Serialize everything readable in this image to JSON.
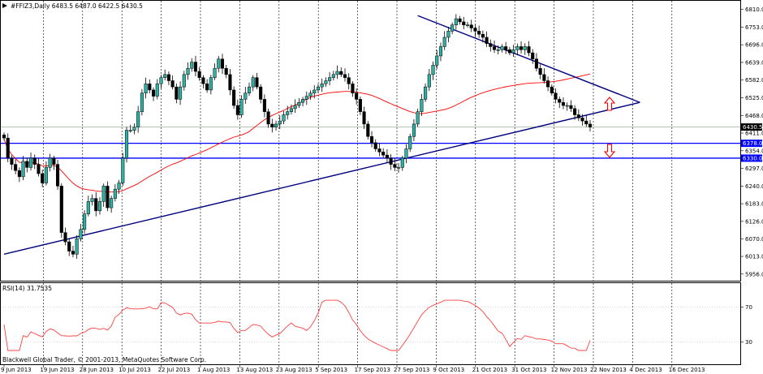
{
  "header": {
    "symbol_text": "#FFIZ3,Daily  6483.5 6487.0 6422.5 6430.5"
  },
  "rsi": {
    "label": "RSI(14) 31.7535",
    "levels": [
      70,
      30
    ],
    "level_labels": [
      "70",
      "30"
    ],
    "last_value": 31.7535
  },
  "footer": {
    "copyright": "Blackwell Global Trader, © 2001-2013, MetaQuotes Software Corp."
  },
  "colors": {
    "bull_candle": "#2fb0a4",
    "bear_candle": "#000000",
    "moving_average": "#ff0000",
    "trendline": "#000080",
    "level_line": "#0000ff",
    "rsi_line": "#ff4040",
    "arrow": "#ff0000",
    "price_tag_bg": "#000000"
  },
  "chart_data": {
    "type": "candlestick",
    "price_axis_ticks": [
      6810,
      6753,
      6696,
      6639,
      6582,
      6525,
      6468,
      6411,
      6354,
      6297,
      6240,
      6183,
      6126,
      6070,
      6013,
      5956
    ],
    "price_axis_labels": [
      "6810.0",
      "6753.0",
      "6696.0",
      "6639.0",
      "6582.0",
      "6525.0",
      "6468.0",
      "6411.0",
      "6354.0",
      "6297.0",
      "6240.0",
      "6183.0",
      "6126.0",
      "6070.0",
      "6013.0",
      "5956.0"
    ],
    "ylim": [
      5945,
      6830
    ],
    "date_labels": [
      "9 Jun 2013",
      "19 Jun 2013",
      "28 Jun 2013",
      "10 Jul 2013",
      "22 Jul 2013",
      "1 Aug 2013",
      "13 Aug 2013",
      "23 Aug 2013",
      "5 Sep 2013",
      "17 Sep 2013",
      "27 Sep 2013",
      "9 Oct 2013",
      "21 Oct 2013",
      "31 Oct 2013",
      "12 Nov 2013",
      "22 Nov 2013",
      "4 Dec 2013",
      "16 Dec 2013"
    ],
    "horizontal_levels": [
      {
        "price": 6378.0,
        "label": "6378.0"
      },
      {
        "price": 6330.0,
        "label": "6330.0"
      }
    ],
    "current_price": {
      "price": 6430.5,
      "label": "6430.5"
    },
    "support_trendline": [
      {
        "bar": 0,
        "price": 6020
      },
      {
        "bar": 166,
        "price": 6510
      }
    ],
    "resistance_trendline": [
      {
        "bar": 108,
        "price": 6790
      },
      {
        "bar": 166,
        "price": 6510
      }
    ],
    "closes": [
      6395,
      6330,
      6310,
      6290,
      6270,
      6320,
      6300,
      6330,
      6310,
      6280,
      6250,
      6300,
      6330,
      6310,
      6240,
      6090,
      6060,
      6030,
      6020,
      6070,
      6100,
      6150,
      6190,
      6200,
      6160,
      6190,
      6240,
      6170,
      6200,
      6230,
      6250,
      6330,
      6420,
      6420,
      6430,
      6480,
      6540,
      6570,
      6550,
      6530,
      6570,
      6590,
      6600,
      6580,
      6560,
      6520,
      6560,
      6600,
      6620,
      6640,
      6610,
      6590,
      6570,
      6550,
      6590,
      6620,
      6650,
      6620,
      6600,
      6550,
      6500,
      6470,
      6520,
      6540,
      6560,
      6590,
      6560,
      6520,
      6480,
      6440,
      6430,
      6440,
      6450,
      6470,
      6480,
      6490,
      6500,
      6510,
      6520,
      6530,
      6540,
      6550,
      6560,
      6570,
      6580,
      6590,
      6600,
      6610,
      6600,
      6590,
      6570,
      6540,
      6520,
      6480,
      6440,
      6400,
      6380,
      6360,
      6350,
      6340,
      6330,
      6310,
      6300,
      6300,
      6330,
      6360,
      6400,
      6440,
      6480,
      6520,
      6560,
      6600,
      6630,
      6660,
      6690,
      6720,
      6740,
      6760,
      6780,
      6770,
      6760,
      6760,
      6750,
      6740,
      6730,
      6720,
      6700,
      6690,
      6680,
      6680,
      6690,
      6680,
      6670,
      6680,
      6690,
      6680,
      6690,
      6670,
      6650,
      6620,
      6600,
      6580,
      6560,
      6540,
      6520,
      6510,
      6500,
      6500,
      6490,
      6470,
      6460,
      6450,
      6440,
      6430
    ]
  }
}
